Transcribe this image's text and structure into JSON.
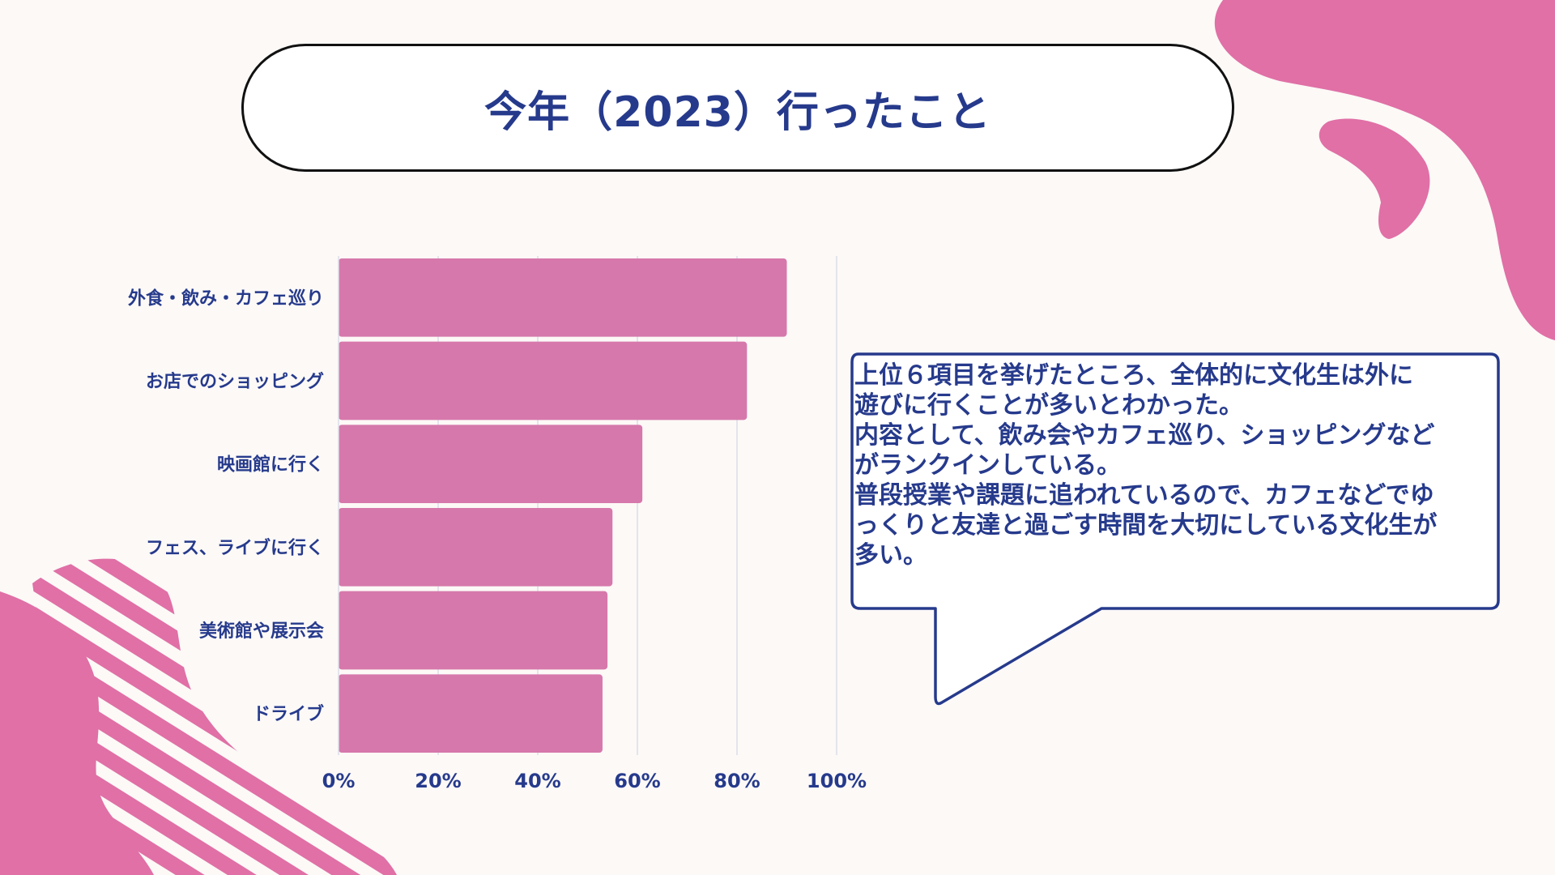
{
  "slide": {
    "title": "今年（2023）行ったこと",
    "comment": "上位６項目を挙げたところ、全体的に文化生は外に\n遊びに行くことが多いとわかった。\n内容として、飲み会やカフェ巡り、ショッピングなど\nがランクインしている。\n普段授業や課題に追われているので、カフェなどでゆ\nっくりと友達と過ごす時間を大切にしている文化生が\n多い。"
  },
  "colors": {
    "bar": "#d678ab",
    "accent_pink": "#e070a6",
    "text_navy": "#263a8c",
    "grid": "#dcdde8"
  },
  "chart_data": {
    "type": "bar",
    "orientation": "horizontal",
    "categories": [
      "外食・飲み・カフェ巡り",
      "お店でのショッピング",
      "映画館に行く",
      "フェス、ライブに行く",
      "美術館や展示会",
      "ドライブ"
    ],
    "values": [
      90,
      82,
      61,
      55,
      54,
      53
    ],
    "xlim": [
      0,
      100
    ],
    "xticks": [
      "0%",
      "20%",
      "40%",
      "60%",
      "80%",
      "100%"
    ],
    "title": "",
    "xlabel": "",
    "ylabel": "",
    "grid": true
  }
}
